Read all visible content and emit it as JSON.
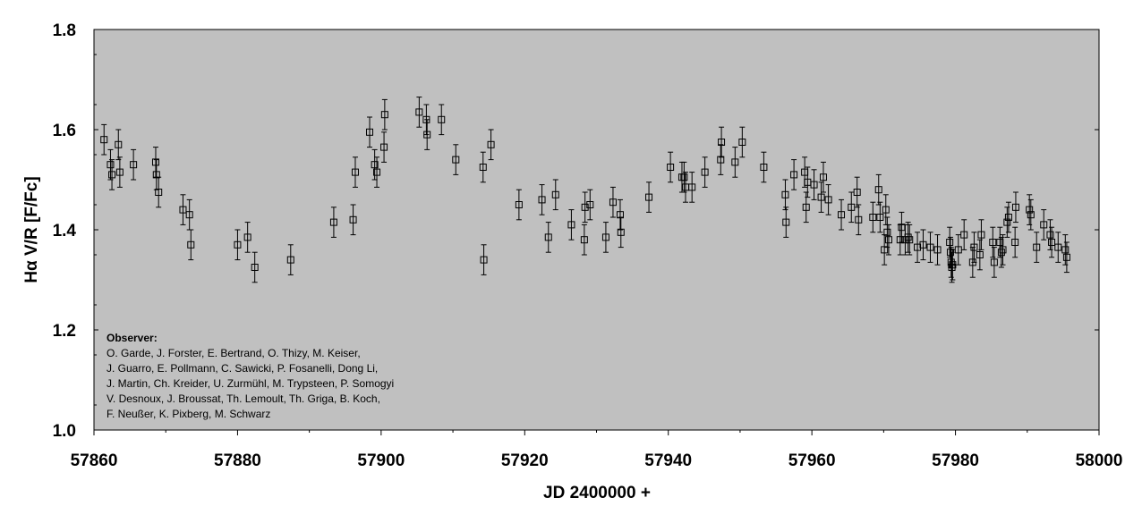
{
  "chart_data": {
    "type": "scatter",
    "title": "",
    "xlabel": "JD 2400000 +",
    "ylabel": "Hα V/R [F/Fc]",
    "xlim": [
      57860,
      58000
    ],
    "ylim": [
      1.0,
      1.8
    ],
    "x_ticks": [
      57860,
      57880,
      57900,
      57920,
      57940,
      57960,
      57980,
      58000
    ],
    "y_ticks": [
      1.0,
      1.2,
      1.4,
      1.6,
      1.8
    ],
    "x_tick_labels": [
      "57860",
      "57880",
      "57900",
      "57920",
      "57940",
      "57960",
      "57980",
      "58000"
    ],
    "y_tick_labels": [
      "1.0",
      "1.2",
      "1.4",
      "1.6",
      "1.8"
    ],
    "grid": false,
    "background_color": "#c0c0c0",
    "marker": "open-square",
    "annotation": {
      "title": "Observer:",
      "lines": [
        "O. Garde, J. Forster, E. Bertrand, O. Thizy, M. Keiser,",
        "J. Guarro, E. Pollmann, C. Sawicki, P. Fosanelli, Dong Li,",
        "J. Martin, Ch. Kreider, U. Zurmühl, M. Trypsteen, P. Somogyi",
        "V. Desnoux, J. Broussat, Th. Lemoult, Th. Griga, B. Koch,",
        "F. Neußer, K. Pixberg, M. Schwarz"
      ]
    },
    "points": [
      {
        "x": 57861.4,
        "y": 1.58,
        "err": 0.03
      },
      {
        "x": 57862.3,
        "y": 1.53,
        "err": 0.03
      },
      {
        "x": 57862.5,
        "y": 1.51,
        "err": 0.03
      },
      {
        "x": 57863.4,
        "y": 1.57,
        "err": 0.03
      },
      {
        "x": 57863.6,
        "y": 1.515,
        "err": 0.03
      },
      {
        "x": 57865.5,
        "y": 1.53,
        "err": 0.03
      },
      {
        "x": 57868.6,
        "y": 1.535,
        "err": 0.03
      },
      {
        "x": 57868.7,
        "y": 1.51,
        "err": 0.03
      },
      {
        "x": 57869.0,
        "y": 1.475,
        "err": 0.03
      },
      {
        "x": 57872.4,
        "y": 1.44,
        "err": 0.03
      },
      {
        "x": 57873.3,
        "y": 1.43,
        "err": 0.03
      },
      {
        "x": 57873.5,
        "y": 1.37,
        "err": 0.03
      },
      {
        "x": 57880.0,
        "y": 1.37,
        "err": 0.03
      },
      {
        "x": 57881.4,
        "y": 1.385,
        "err": 0.03
      },
      {
        "x": 57882.4,
        "y": 1.325,
        "err": 0.03
      },
      {
        "x": 57887.4,
        "y": 1.34,
        "err": 0.03
      },
      {
        "x": 57893.4,
        "y": 1.415,
        "err": 0.03
      },
      {
        "x": 57896.1,
        "y": 1.42,
        "err": 0.03
      },
      {
        "x": 57896.4,
        "y": 1.515,
        "err": 0.03
      },
      {
        "x": 57898.4,
        "y": 1.595,
        "err": 0.03
      },
      {
        "x": 57899.1,
        "y": 1.53,
        "err": 0.03
      },
      {
        "x": 57899.4,
        "y": 1.515,
        "err": 0.03
      },
      {
        "x": 57900.4,
        "y": 1.565,
        "err": 0.03
      },
      {
        "x": 57900.5,
        "y": 1.63,
        "err": 0.03
      },
      {
        "x": 57905.3,
        "y": 1.635,
        "err": 0.03
      },
      {
        "x": 57906.3,
        "y": 1.62,
        "err": 0.03
      },
      {
        "x": 57906.4,
        "y": 1.59,
        "err": 0.03
      },
      {
        "x": 57908.4,
        "y": 1.62,
        "err": 0.03
      },
      {
        "x": 57910.4,
        "y": 1.54,
        "err": 0.03
      },
      {
        "x": 57914.2,
        "y": 1.525,
        "err": 0.03
      },
      {
        "x": 57914.3,
        "y": 1.34,
        "err": 0.03
      },
      {
        "x": 57915.3,
        "y": 1.57,
        "err": 0.03
      },
      {
        "x": 57919.2,
        "y": 1.45,
        "err": 0.03
      },
      {
        "x": 57922.4,
        "y": 1.46,
        "err": 0.03
      },
      {
        "x": 57923.3,
        "y": 1.385,
        "err": 0.03
      },
      {
        "x": 57924.3,
        "y": 1.47,
        "err": 0.03
      },
      {
        "x": 57926.5,
        "y": 1.41,
        "err": 0.03
      },
      {
        "x": 57928.3,
        "y": 1.38,
        "err": 0.03
      },
      {
        "x": 57928.4,
        "y": 1.445,
        "err": 0.03
      },
      {
        "x": 57929.1,
        "y": 1.45,
        "err": 0.03
      },
      {
        "x": 57931.3,
        "y": 1.385,
        "err": 0.03
      },
      {
        "x": 57932.3,
        "y": 1.455,
        "err": 0.03
      },
      {
        "x": 57933.3,
        "y": 1.43,
        "err": 0.03
      },
      {
        "x": 57933.4,
        "y": 1.395,
        "err": 0.03
      },
      {
        "x": 57937.3,
        "y": 1.465,
        "err": 0.03
      },
      {
        "x": 57940.3,
        "y": 1.525,
        "err": 0.03
      },
      {
        "x": 57941.9,
        "y": 1.505,
        "err": 0.03
      },
      {
        "x": 57942.2,
        "y": 1.505,
        "err": 0.03
      },
      {
        "x": 57942.4,
        "y": 1.485,
        "err": 0.03
      },
      {
        "x": 57943.3,
        "y": 1.485,
        "err": 0.03
      },
      {
        "x": 57945.1,
        "y": 1.515,
        "err": 0.03
      },
      {
        "x": 57947.3,
        "y": 1.54,
        "err": 0.03
      },
      {
        "x": 57947.4,
        "y": 1.575,
        "err": 0.03
      },
      {
        "x": 57949.3,
        "y": 1.535,
        "err": 0.03
      },
      {
        "x": 57950.3,
        "y": 1.575,
        "err": 0.03
      },
      {
        "x": 57953.3,
        "y": 1.525,
        "err": 0.03
      },
      {
        "x": 57956.3,
        "y": 1.47,
        "err": 0.03
      },
      {
        "x": 57956.4,
        "y": 1.415,
        "err": 0.03
      },
      {
        "x": 57957.5,
        "y": 1.51,
        "err": 0.03
      },
      {
        "x": 57959.0,
        "y": 1.515,
        "err": 0.03
      },
      {
        "x": 57959.2,
        "y": 1.445,
        "err": 0.03
      },
      {
        "x": 57959.4,
        "y": 1.495,
        "err": 0.03
      },
      {
        "x": 57960.3,
        "y": 1.49,
        "err": 0.03
      },
      {
        "x": 57961.3,
        "y": 1.465,
        "err": 0.03
      },
      {
        "x": 57961.6,
        "y": 1.505,
        "err": 0.03
      },
      {
        "x": 57962.3,
        "y": 1.46,
        "err": 0.03
      },
      {
        "x": 57964.1,
        "y": 1.43,
        "err": 0.03
      },
      {
        "x": 57965.5,
        "y": 1.445,
        "err": 0.03
      },
      {
        "x": 57966.3,
        "y": 1.475,
        "err": 0.03
      },
      {
        "x": 57966.5,
        "y": 1.42,
        "err": 0.03
      },
      {
        "x": 57968.5,
        "y": 1.425,
        "err": 0.03
      },
      {
        "x": 57969.3,
        "y": 1.48,
        "err": 0.03
      },
      {
        "x": 57969.5,
        "y": 1.425,
        "err": 0.03
      },
      {
        "x": 57970.1,
        "y": 1.36,
        "err": 0.03
      },
      {
        "x": 57970.3,
        "y": 1.44,
        "err": 0.03
      },
      {
        "x": 57970.5,
        "y": 1.395,
        "err": 0.03
      },
      {
        "x": 57970.7,
        "y": 1.38,
        "err": 0.03
      },
      {
        "x": 57972.3,
        "y": 1.38,
        "err": 0.03
      },
      {
        "x": 57972.5,
        "y": 1.405,
        "err": 0.03
      },
      {
        "x": 57973.0,
        "y": 1.38,
        "err": 0.03
      },
      {
        "x": 57973.4,
        "y": 1.385,
        "err": 0.03
      },
      {
        "x": 57973.6,
        "y": 1.38,
        "err": 0.03
      },
      {
        "x": 57974.7,
        "y": 1.365,
        "err": 0.03
      },
      {
        "x": 57975.5,
        "y": 1.37,
        "err": 0.03
      },
      {
        "x": 57976.5,
        "y": 1.365,
        "err": 0.03
      },
      {
        "x": 57977.5,
        "y": 1.36,
        "err": 0.03
      },
      {
        "x": 57979.2,
        "y": 1.375,
        "err": 0.03
      },
      {
        "x": 57979.3,
        "y": 1.355,
        "err": 0.03
      },
      {
        "x": 57979.4,
        "y": 1.335,
        "err": 0.03
      },
      {
        "x": 57979.5,
        "y": 1.325,
        "err": 0.03
      },
      {
        "x": 57979.6,
        "y": 1.33,
        "err": 0.03
      },
      {
        "x": 57980.4,
        "y": 1.36,
        "err": 0.03
      },
      {
        "x": 57981.2,
        "y": 1.39,
        "err": 0.03
      },
      {
        "x": 57982.4,
        "y": 1.335,
        "err": 0.03
      },
      {
        "x": 57982.6,
        "y": 1.365,
        "err": 0.03
      },
      {
        "x": 57983.4,
        "y": 1.35,
        "err": 0.03
      },
      {
        "x": 57983.6,
        "y": 1.39,
        "err": 0.03
      },
      {
        "x": 57985.2,
        "y": 1.375,
        "err": 0.03
      },
      {
        "x": 57985.4,
        "y": 1.335,
        "err": 0.03
      },
      {
        "x": 57986.2,
        "y": 1.375,
        "err": 0.03
      },
      {
        "x": 57986.4,
        "y": 1.355,
        "err": 0.03
      },
      {
        "x": 57986.6,
        "y": 1.36,
        "err": 0.03
      },
      {
        "x": 57987.2,
        "y": 1.415,
        "err": 0.03
      },
      {
        "x": 57987.4,
        "y": 1.425,
        "err": 0.03
      },
      {
        "x": 57988.3,
        "y": 1.375,
        "err": 0.03
      },
      {
        "x": 57988.4,
        "y": 1.445,
        "err": 0.03
      },
      {
        "x": 57990.3,
        "y": 1.44,
        "err": 0.03
      },
      {
        "x": 57990.5,
        "y": 1.43,
        "err": 0.03
      },
      {
        "x": 57991.3,
        "y": 1.365,
        "err": 0.03
      },
      {
        "x": 57992.3,
        "y": 1.41,
        "err": 0.03
      },
      {
        "x": 57993.2,
        "y": 1.39,
        "err": 0.03
      },
      {
        "x": 57993.4,
        "y": 1.375,
        "err": 0.03
      },
      {
        "x": 57994.3,
        "y": 1.365,
        "err": 0.03
      },
      {
        "x": 57995.3,
        "y": 1.36,
        "err": 0.03
      },
      {
        "x": 57995.5,
        "y": 1.345,
        "err": 0.03
      }
    ]
  }
}
